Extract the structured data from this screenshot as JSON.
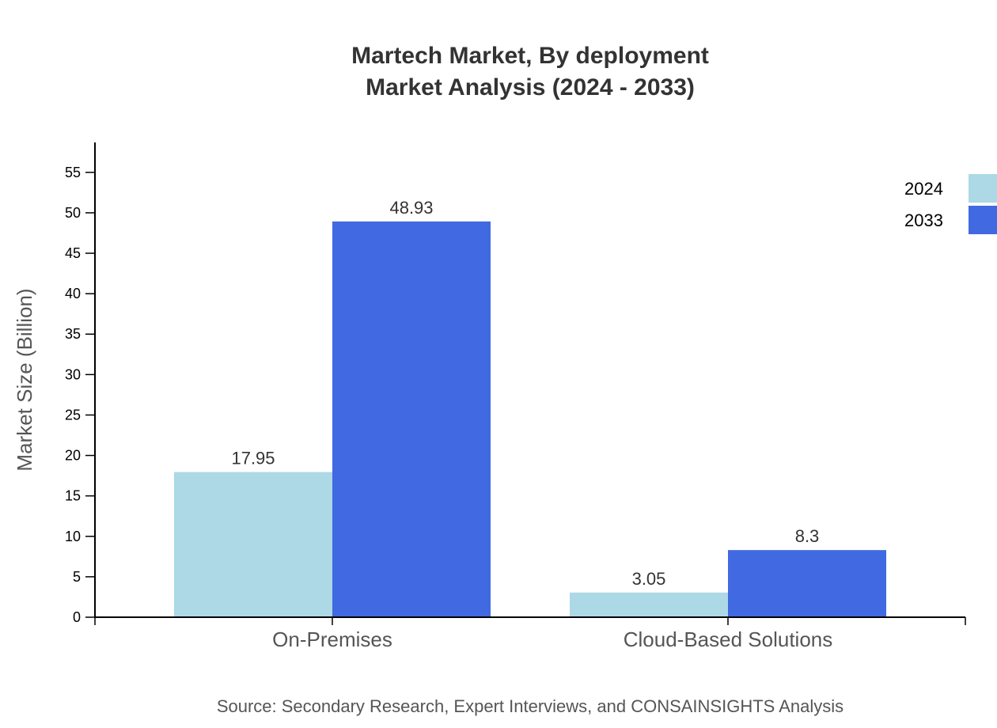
{
  "chart_data": {
    "type": "bar",
    "title": "Martech Market, By deployment",
    "subtitle": "Market Analysis (2024 - 2033)",
    "categories": [
      "On-Premises",
      "Cloud-Based Solutions"
    ],
    "series": [
      {
        "name": "2024",
        "values": [
          17.95,
          3.05
        ],
        "color": "#add8e6"
      },
      {
        "name": "2033",
        "values": [
          48.93,
          8.3
        ],
        "color": "#4169e1"
      }
    ],
    "xlabel": "",
    "ylabel": "Market Size (Billion)",
    "ylim": [
      0,
      58.7
    ],
    "yticks": [
      0,
      5,
      10,
      15,
      20,
      25,
      30,
      35,
      40,
      45,
      50,
      55
    ],
    "grid": false,
    "legend_position": "top-right",
    "source": "Source: Secondary Research, Expert Interviews, and CONSAINSIGHTS Analysis"
  }
}
